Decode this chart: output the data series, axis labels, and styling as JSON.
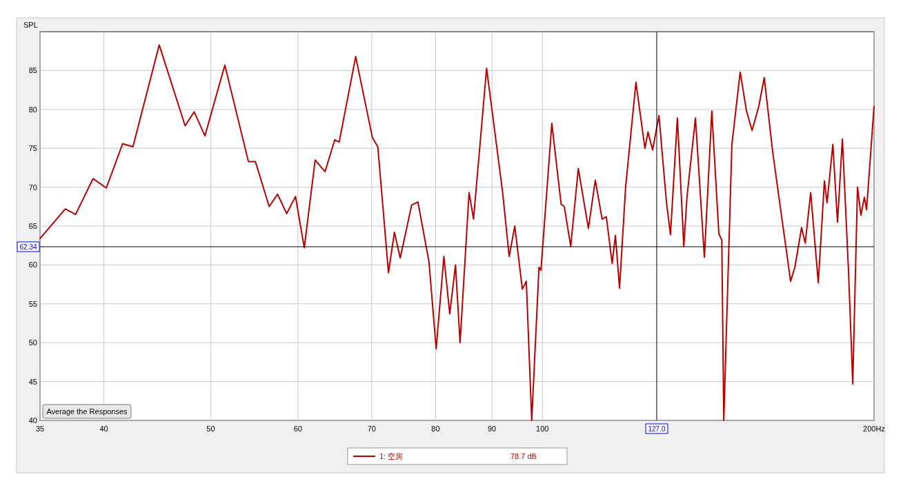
{
  "chart_data": {
    "type": "line",
    "ylabel": "SPL",
    "x": [
      35,
      36.9,
      37.7,
      39.1,
      40.2,
      41.6,
      42.5,
      44.9,
      47.4,
      48.3,
      49.4,
      51.5,
      54.1,
      54.9,
      56.5,
      57.5,
      58.6,
      59.7,
      60.8,
      62.2,
      63.5,
      64.8,
      65.4,
      67.7,
      70.1,
      70.9,
      72.5,
      73.4,
      74.3,
      76.1,
      77.1,
      78.9,
      80.1,
      81.4,
      82.4,
      83.4,
      84.2,
      85.8,
      86.6,
      89.0,
      92.0,
      93.3,
      94.4,
      95.9,
      96.7,
      97.8,
      99.3,
      99.7,
      102.0,
      104.0,
      104.7,
      106.1,
      107.8,
      110.1,
      111.7,
      113.3,
      114.3,
      115.7,
      116.5,
      117.5,
      119.0,
      121.6,
      123.9,
      124.7,
      125.9,
      127.6,
      129.6,
      130.7,
      132.6,
      134.4,
      135.3,
      137.7,
      140.3,
      142.5,
      144.6,
      145.5,
      146.1,
      148.6,
      151.2,
      153.2,
      155.0,
      157.2,
      159.0,
      161.8,
      165.1,
      168.0,
      169.5,
      171.9,
      173.2,
      175.2,
      178.0,
      180.3,
      181.3,
      183.5,
      185.3,
      187.2,
      189.6,
      191.3,
      193.2,
      194.6,
      196.0,
      196.9,
      200
    ],
    "series": [
      {
        "name": "1: 空房",
        "color": "#b80000",
        "values": [
          63.4,
          67.2,
          66.5,
          71.1,
          69.9,
          75.6,
          75.2,
          88.3,
          77.9,
          79.7,
          76.6,
          85.7,
          73.3,
          73.3,
          67.5,
          69.1,
          66.6,
          68.8,
          62.2,
          73.5,
          72.0,
          76.1,
          75.8,
          86.8,
          76.4,
          75.2,
          59.0,
          64.2,
          60.9,
          67.7,
          68.1,
          60.4,
          49.2,
          61.1,
          53.7,
          60.0,
          50.0,
          69.3,
          65.9,
          85.3,
          69.5,
          61.1,
          65.0,
          56.9,
          57.9,
          40,
          59.7,
          59.3,
          78.2,
          67.8,
          67.5,
          62.4,
          72.4,
          64.7,
          70.9,
          65.9,
          66.2,
          60.2,
          63.8,
          57.0,
          70.0,
          83.5,
          75.0,
          77.1,
          74.8,
          79.2,
          68.1,
          63.9,
          78.9,
          62.4,
          68.8,
          78.9,
          61.0,
          79.8,
          64.0,
          63.2,
          40,
          75.5,
          84.8,
          79.8,
          77.3,
          80.4,
          84.1,
          74.6,
          65.6,
          57.9,
          59.7,
          64.8,
          62.8,
          69.3,
          57.7,
          70.8,
          68.0,
          75.5,
          65.5,
          76.2,
          59.3,
          44.7,
          70.0,
          66.4,
          68.7,
          67.1,
          80.4
        ]
      }
    ],
    "log": "x",
    "xlim": [
      35,
      200
    ],
    "ylim": [
      40,
      90
    ],
    "xticks": [
      35,
      40,
      50,
      60,
      70,
      80,
      90,
      100,
      {
        "value": 200,
        "label": "200Hz"
      }
    ],
    "yticks": [
      40,
      45,
      50,
      55,
      60,
      65,
      70,
      75,
      80,
      85
    ],
    "grid": true,
    "legend": "bottom",
    "marker": "none",
    "line_style": "solid",
    "ref_lines": [
      {
        "axis": "y",
        "value": 62.34,
        "label": "62.34",
        "color": "#000000"
      },
      {
        "axis": "x",
        "value": 127.0,
        "label": "127.0",
        "color": "#000000"
      }
    ],
    "annotations": [
      "Average the Responses",
      "78.7 dB"
    ]
  }
}
